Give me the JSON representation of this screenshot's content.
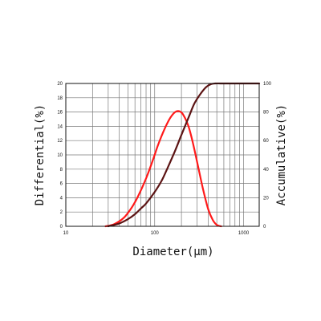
{
  "chart_data": {
    "type": "line",
    "title": "",
    "xlabel": "Diameter(μm)",
    "ylabel_left": "Differential(%)",
    "ylabel_right": "Accumulative(%)",
    "x_scale": "log",
    "xlim": [
      10,
      1500
    ],
    "ylim_left": [
      0,
      20
    ],
    "ylim_right": [
      0,
      100
    ],
    "grid": true,
    "x_ticks": [
      {
        "value": 10,
        "label": "10"
      },
      {
        "value": 100,
        "label": "100"
      },
      {
        "value": 1000,
        "label": "1000"
      }
    ],
    "y_ticks_left": [
      {
        "value": 0,
        "label": "0"
      },
      {
        "value": 2,
        "label": "2"
      },
      {
        "value": 4,
        "label": "4"
      },
      {
        "value": 6,
        "label": "6"
      },
      {
        "value": 8,
        "label": "8"
      },
      {
        "value": 10,
        "label": "10"
      },
      {
        "value": 12,
        "label": "12"
      },
      {
        "value": 14,
        "label": "14"
      },
      {
        "value": 16,
        "label": "16"
      },
      {
        "value": 18,
        "label": "18"
      },
      {
        "value": 20,
        "label": "20"
      }
    ],
    "y_ticks_right": [
      {
        "value": 0,
        "label": "0"
      },
      {
        "value": 20,
        "label": "20"
      },
      {
        "value": 40,
        "label": "40"
      },
      {
        "value": 60,
        "label": "60"
      },
      {
        "value": 80,
        "label": "80"
      },
      {
        "value": 100,
        "label": "100"
      }
    ],
    "series": [
      {
        "axis": "left",
        "color": "#ff1a1a",
        "x": [
          28,
          35,
          45,
          55,
          65,
          80,
          95,
          110,
          130,
          150,
          170,
          190,
          210,
          240,
          270,
          310,
          350,
          400,
          450,
          500,
          560
        ],
        "y": [
          0,
          0.3,
          1.2,
          2.6,
          4.2,
          6.7,
          9.2,
          11.5,
          13.7,
          15.2,
          16.0,
          16.1,
          15.6,
          14.0,
          11.6,
          8.2,
          5.2,
          2.4,
          0.9,
          0.2,
          0
        ]
      },
      {
        "axis": "right",
        "color": "#5c1414",
        "x": [
          30,
          40,
          50,
          60,
          70,
          80,
          100,
          120,
          140,
          170,
          200,
          240,
          280,
          330,
          380,
          430,
          480,
          550,
          700,
          1000,
          1500
        ],
        "y": [
          0,
          2,
          5,
          8.5,
          12.5,
          16,
          24,
          32,
          41,
          53,
          64,
          76,
          86,
          93,
          97.5,
          99.5,
          100,
          100,
          100,
          100,
          100
        ]
      }
    ]
  }
}
